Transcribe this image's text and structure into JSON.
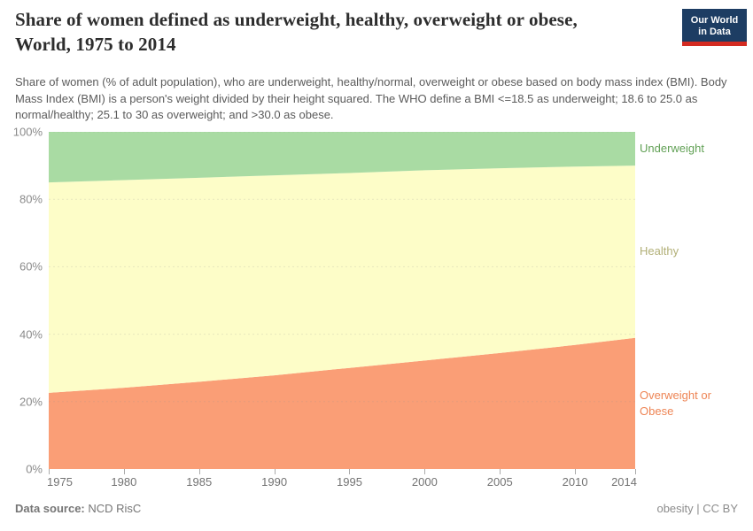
{
  "header": {
    "title": "Share of women defined as underweight, healthy, overweight or obese, World, 1975 to 2014",
    "subtitle": "Share of women (% of adult population), who are underweight, healthy/normal, overweight or obese based on body mass index (BMI). Body Mass Index (BMI) is a person's weight divided by their height squared. The WHO define a BMI <=18.5 as underweight; 18.6 to 25.0 as normal/healthy; 25.1 to 30 as overweight; and >30.0 as obese.",
    "logo": {
      "line1": "Our World",
      "line2": "in Data",
      "bg_color": "#1d3d63",
      "bar_color": "#d42b21"
    }
  },
  "footer": {
    "source_label": "Data source:",
    "source_value": "NCD RisC",
    "license_text": "obesity | CC BY"
  },
  "chart_data": {
    "type": "area",
    "stacked": true,
    "title": "Share of women defined as underweight, healthy, overweight or obese",
    "xlabel": "",
    "ylabel": "",
    "x": [
      1975,
      1980,
      1985,
      1990,
      1995,
      2000,
      2005,
      2010,
      2014
    ],
    "xtick_labels": [
      "1975",
      "1980",
      "1985",
      "1990",
      "1995",
      "2000",
      "2005",
      "2010",
      "2014"
    ],
    "ylim": [
      0,
      100
    ],
    "yticks": [
      0,
      20,
      40,
      60,
      80,
      100
    ],
    "ytick_labels": [
      "0%",
      "20%",
      "40%",
      "60%",
      "80%",
      "100%"
    ],
    "grid": "horizontal-dashed",
    "legend_position": "right-edge-labels",
    "series": [
      {
        "name": "Overweight or Obese",
        "label": "Overweight or\nObese",
        "color": "#fa9e76",
        "label_color": "#ee8555",
        "values": [
          22.6,
          24.1,
          25.9,
          27.8,
          30.0,
          32.2,
          34.4,
          36.8,
          38.9
        ]
      },
      {
        "name": "Healthy",
        "label": "Healthy",
        "color": "#fdfdc8",
        "label_color": "#b2b078",
        "values": [
          62.4,
          61.6,
          60.5,
          59.3,
          57.8,
          56.4,
          54.8,
          52.9,
          51.1
        ]
      },
      {
        "name": "Underweight",
        "label": "Underweight",
        "color": "#a9dba3",
        "label_color": "#62a156",
        "values": [
          15.0,
          14.3,
          13.6,
          12.9,
          12.2,
          11.4,
          10.8,
          10.3,
          10.0
        ]
      }
    ]
  }
}
